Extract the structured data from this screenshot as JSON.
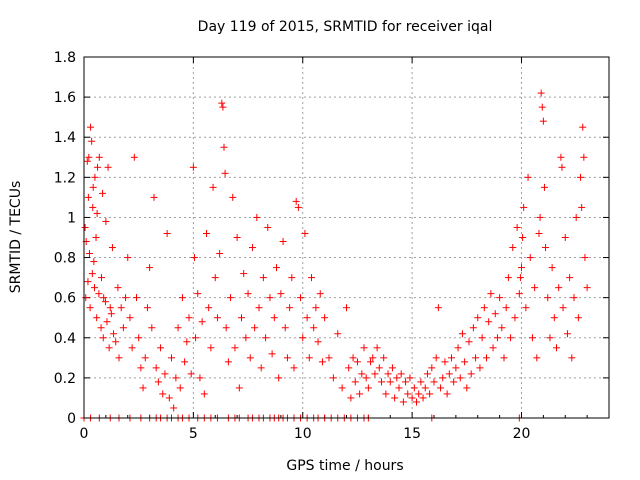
{
  "chart_data": {
    "type": "scatter",
    "title": "Day 119 of 2015, SRMTID for receiver iqal",
    "xlabel": "GPS time / hours",
    "ylabel": "SRMTID / TECUs",
    "xlim": [
      0,
      24
    ],
    "ylim": [
      0,
      1.8
    ],
    "xticks": [
      0,
      5,
      10,
      15,
      20
    ],
    "xtick_labels": [
      "0",
      "5",
      "10",
      "15",
      "20"
    ],
    "yticks": [
      0,
      0.2,
      0.4,
      0.6,
      0.8,
      1.0,
      1.2,
      1.4,
      1.6,
      1.8
    ],
    "ytick_labels": [
      "0",
      "0.2",
      "0.4",
      "0.6",
      "0.8",
      "1",
      "1.2",
      "1.4",
      "1.6",
      "1.8"
    ],
    "grid": true,
    "marker": "+",
    "marker_color": "#ff0000",
    "series": [
      {
        "name": "SRMTID",
        "points": [
          [
            0.05,
            0.95
          ],
          [
            0.1,
            0.88
          ],
          [
            0.15,
            1.28
          ],
          [
            0.2,
            1.1
          ],
          [
            0.25,
            0.82
          ],
          [
            0.3,
            1.45
          ],
          [
            0.35,
            1.38
          ],
          [
            0.4,
            1.05
          ],
          [
            0.45,
            0.78
          ],
          [
            0.5,
            1.2
          ],
          [
            0.55,
            0.9
          ],
          [
            0.6,
            1.02
          ],
          [
            0.7,
            1.3
          ],
          [
            0.8,
            0.7
          ],
          [
            0.85,
            1.12
          ],
          [
            0.9,
            0.6
          ],
          [
            1.0,
            0.98
          ],
          [
            1.1,
            1.25
          ],
          [
            1.2,
            0.55
          ],
          [
            1.3,
            0.85
          ],
          [
            0.08,
            0.6
          ],
          [
            0.18,
            0.68
          ],
          [
            0.28,
            0.55
          ],
          [
            0.38,
            0.72
          ],
          [
            0.48,
            0.65
          ],
          [
            0.58,
            0.5
          ],
          [
            0.68,
            0.62
          ],
          [
            0.78,
            0.45
          ],
          [
            0.88,
            0.4
          ],
          [
            0.98,
            0.58
          ],
          [
            1.05,
            0.48
          ],
          [
            1.15,
            0.35
          ],
          [
            1.25,
            0.52
          ],
          [
            1.35,
            0.42
          ],
          [
            1.45,
            0.38
          ],
          [
            1.55,
            0.65
          ],
          [
            1.6,
            0.3
          ],
          [
            1.7,
            0.55
          ],
          [
            1.8,
            0.45
          ],
          [
            1.9,
            0.6
          ],
          [
            2.0,
            0.8
          ],
          [
            2.1,
            0.5
          ],
          [
            2.2,
            0.35
          ],
          [
            2.3,
            1.3
          ],
          [
            2.4,
            0.6
          ],
          [
            2.5,
            0.4
          ],
          [
            2.6,
            0.25
          ],
          [
            2.7,
            0.15
          ],
          [
            2.8,
            0.3
          ],
          [
            2.9,
            0.55
          ],
          [
            3.0,
            0.75
          ],
          [
            3.1,
            0.45
          ],
          [
            3.2,
            1.1
          ],
          [
            3.3,
            0.25
          ],
          [
            3.4,
            0.18
          ],
          [
            3.5,
            0.35
          ],
          [
            3.6,
            0.12
          ],
          [
            3.7,
            0.22
          ],
          [
            3.8,
            0.92
          ],
          [
            3.9,
            0.1
          ],
          [
            4.0,
            0.3
          ],
          [
            4.1,
            0.05
          ],
          [
            4.2,
            0.2
          ],
          [
            4.3,
            0.45
          ],
          [
            4.4,
            0.15
          ],
          [
            4.5,
            0.6
          ],
          [
            4.6,
            0.28
          ],
          [
            4.7,
            0.38
          ],
          [
            4.8,
            0.5
          ],
          [
            4.9,
            0.22
          ],
          [
            5.0,
            1.25
          ],
          [
            5.05,
            0.8
          ],
          [
            5.1,
            0.4
          ],
          [
            5.2,
            0.62
          ],
          [
            5.3,
            0.2
          ],
          [
            5.4,
            0.48
          ],
          [
            5.5,
            0.12
          ],
          [
            5.6,
            0.92
          ],
          [
            5.7,
            0.55
          ],
          [
            5.8,
            0.35
          ],
          [
            5.9,
            1.15
          ],
          [
            6.0,
            0.7
          ],
          [
            6.1,
            0.5
          ],
          [
            6.2,
            0.82
          ],
          [
            6.3,
            1.57
          ],
          [
            6.35,
            1.55
          ],
          [
            6.4,
            1.35
          ],
          [
            6.45,
            1.22
          ],
          [
            6.5,
            0.45
          ],
          [
            6.6,
            0.28
          ],
          [
            6.7,
            0.6
          ],
          [
            6.8,
            1.1
          ],
          [
            6.9,
            0.35
          ],
          [
            7.0,
            0.9
          ],
          [
            7.1,
            0.15
          ],
          [
            7.2,
            0.5
          ],
          [
            7.3,
            0.72
          ],
          [
            7.4,
            0.4
          ],
          [
            7.5,
            0.62
          ],
          [
            7.6,
            0.3
          ],
          [
            7.7,
            0.85
          ],
          [
            7.8,
            0.45
          ],
          [
            7.9,
            1.0
          ],
          [
            8.0,
            0.55
          ],
          [
            8.1,
            0.25
          ],
          [
            8.2,
            0.7
          ],
          [
            8.3,
            0.4
          ],
          [
            8.4,
            0.95
          ],
          [
            8.5,
            0.6
          ],
          [
            8.6,
            0.32
          ],
          [
            8.7,
            0.5
          ],
          [
            8.8,
            0.75
          ],
          [
            8.9,
            0.2
          ],
          [
            9.0,
            0.62
          ],
          [
            9.1,
            0.88
          ],
          [
            9.2,
            0.45
          ],
          [
            9.3,
            0.3
          ],
          [
            9.4,
            0.55
          ],
          [
            9.5,
            0.7
          ],
          [
            9.6,
            0.25
          ],
          [
            9.7,
            1.08
          ],
          [
            9.8,
            1.05
          ],
          [
            9.9,
            0.6
          ],
          [
            10.0,
            0.4
          ],
          [
            10.1,
            0.92
          ],
          [
            10.2,
            0.5
          ],
          [
            10.3,
            0.3
          ],
          [
            10.4,
            0.7
          ],
          [
            10.5,
            0.45
          ],
          [
            10.6,
            0.55
          ],
          [
            10.7,
            0.38
          ],
          [
            10.8,
            0.62
          ],
          [
            10.9,
            0.28
          ],
          [
            11.0,
            0.5
          ],
          [
            11.2,
            0.3
          ],
          [
            11.4,
            0.2
          ],
          [
            11.6,
            0.42
          ],
          [
            11.8,
            0.15
          ],
          [
            12.0,
            0.55
          ],
          [
            12.1,
            0.25
          ],
          [
            12.2,
            0.1
          ],
          [
            12.3,
            0.3
          ],
          [
            12.4,
            0.18
          ],
          [
            12.5,
            0.28
          ],
          [
            12.6,
            0.12
          ],
          [
            12.7,
            0.22
          ],
          [
            12.8,
            0.35
          ],
          [
            12.9,
            0.2
          ],
          [
            13.0,
            0.15
          ],
          [
            13.1,
            0.28
          ],
          [
            13.2,
            0.3
          ],
          [
            13.3,
            0.22
          ],
          [
            13.4,
            0.35
          ],
          [
            13.5,
            0.25
          ],
          [
            13.6,
            0.18
          ],
          [
            13.7,
            0.3
          ],
          [
            13.8,
            0.12
          ],
          [
            13.9,
            0.22
          ],
          [
            14.0,
            0.18
          ],
          [
            14.1,
            0.25
          ],
          [
            14.2,
            0.1
          ],
          [
            14.3,
            0.2
          ],
          [
            14.4,
            0.15
          ],
          [
            14.5,
            0.22
          ],
          [
            14.6,
            0.08
          ],
          [
            14.7,
            0.18
          ],
          [
            14.8,
            0.12
          ],
          [
            14.9,
            0.2
          ],
          [
            15.0,
            0.1
          ],
          [
            15.1,
            0.15
          ],
          [
            15.2,
            0.08
          ],
          [
            15.3,
            0.12
          ],
          [
            15.4,
            0.18
          ],
          [
            15.5,
            0.1
          ],
          [
            15.6,
            0.15
          ],
          [
            15.7,
            0.22
          ],
          [
            15.8,
            0.12
          ],
          [
            15.9,
            0.25
          ],
          [
            16.0,
            0.18
          ],
          [
            16.1,
            0.3
          ],
          [
            16.2,
            0.55
          ],
          [
            16.3,
            0.15
          ],
          [
            16.4,
            0.2
          ],
          [
            16.5,
            0.28
          ],
          [
            16.6,
            0.12
          ],
          [
            16.7,
            0.22
          ],
          [
            16.8,
            0.3
          ],
          [
            16.9,
            0.18
          ],
          [
            17.0,
            0.25
          ],
          [
            17.1,
            0.35
          ],
          [
            17.2,
            0.2
          ],
          [
            17.3,
            0.42
          ],
          [
            17.4,
            0.28
          ],
          [
            17.5,
            0.15
          ],
          [
            17.6,
            0.38
          ],
          [
            17.7,
            0.22
          ],
          [
            17.8,
            0.45
          ],
          [
            17.9,
            0.3
          ],
          [
            18.0,
            0.5
          ],
          [
            18.1,
            0.25
          ],
          [
            18.2,
            0.4
          ],
          [
            18.3,
            0.55
          ],
          [
            18.4,
            0.3
          ],
          [
            18.5,
            0.48
          ],
          [
            18.6,
            0.62
          ],
          [
            18.7,
            0.35
          ],
          [
            18.8,
            0.52
          ],
          [
            18.9,
            0.4
          ],
          [
            19.0,
            0.6
          ],
          [
            19.1,
            0.45
          ],
          [
            19.2,
            0.3
          ],
          [
            19.3,
            0.55
          ],
          [
            19.4,
            0.7
          ],
          [
            19.5,
            0.4
          ],
          [
            19.6,
            0.85
          ],
          [
            19.7,
            0.5
          ],
          [
            19.8,
            0.95
          ],
          [
            19.9,
            0.62
          ],
          [
            20.0,
            0.75
          ],
          [
            20.1,
            1.05
          ],
          [
            20.2,
            0.55
          ],
          [
            20.3,
            1.2
          ],
          [
            20.4,
            0.8
          ],
          [
            20.5,
            0.4
          ],
          [
            20.6,
            0.65
          ],
          [
            20.7,
            0.3
          ],
          [
            20.8,
            0.92
          ],
          [
            20.9,
            1.62
          ],
          [
            20.95,
            1.55
          ],
          [
            21.0,
            1.48
          ],
          [
            21.05,
            1.15
          ],
          [
            21.1,
            0.85
          ],
          [
            21.2,
            0.6
          ],
          [
            21.3,
            0.4
          ],
          [
            21.4,
            0.75
          ],
          [
            21.5,
            0.5
          ],
          [
            21.6,
            0.35
          ],
          [
            21.7,
            0.65
          ],
          [
            21.8,
            1.3
          ],
          [
            21.9,
            0.55
          ],
          [
            22.0,
            0.9
          ],
          [
            22.1,
            0.42
          ],
          [
            22.2,
            0.7
          ],
          [
            22.3,
            0.3
          ],
          [
            22.4,
            0.6
          ],
          [
            22.5,
            1.0
          ],
          [
            22.6,
            0.5
          ],
          [
            22.7,
            1.2
          ],
          [
            22.8,
            1.45
          ],
          [
            22.9,
            0.8
          ],
          [
            23.0,
            0.65
          ],
          [
            22.85,
            1.3
          ],
          [
            22.75,
            1.05
          ],
          [
            21.85,
            1.25
          ],
          [
            20.85,
            1.0
          ],
          [
            20.05,
            0.9
          ],
          [
            19.95,
            0.7
          ],
          [
            0.22,
            1.3
          ],
          [
            0.42,
            1.15
          ],
          [
            0.62,
            1.25
          ]
        ]
      }
    ],
    "zero_points": [
      0.0,
      0.3,
      0.7,
      1.2,
      1.6,
      2.1,
      2.6,
      3.0,
      3.3,
      3.5,
      3.8,
      4.0,
      4.3,
      4.5,
      4.8,
      5.2,
      5.5,
      5.8,
      6.1,
      6.6,
      6.9,
      7.1,
      7.5,
      7.7,
      8.0,
      8.2,
      8.5,
      8.7,
      8.9,
      9.1,
      9.3,
      9.6,
      9.9,
      10.2,
      10.5,
      10.7,
      11.0,
      11.3,
      11.6,
      11.9,
      12.2,
      12.5,
      12.8,
      13.0,
      15.9,
      19.9
    ]
  }
}
